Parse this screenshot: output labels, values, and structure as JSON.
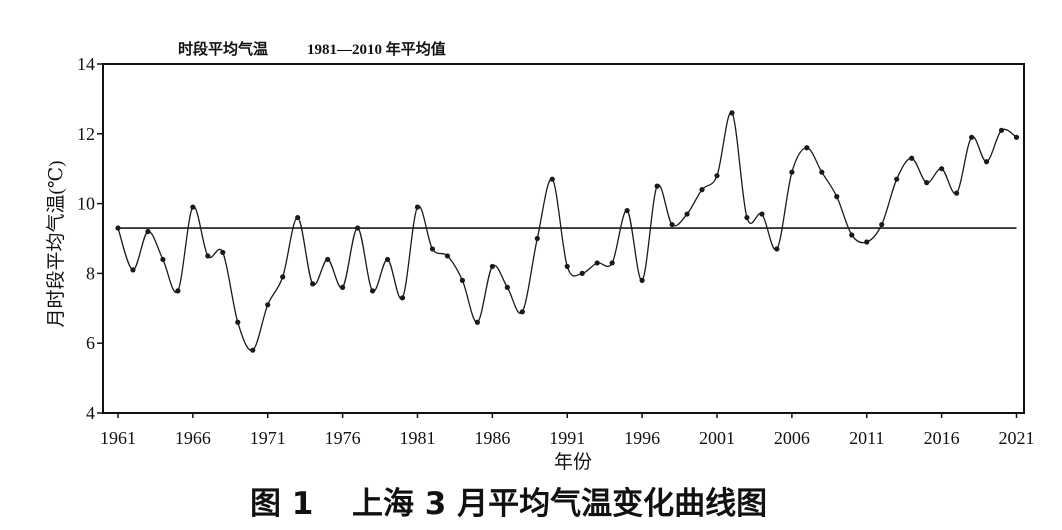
{
  "chart_data": {
    "type": "line",
    "figure_label": "图 1",
    "title": "上海 3 月平均气温变化曲线图",
    "xlabel": "年份",
    "ylabel": "月时段平均气温(℃)",
    "xlim": [
      1960,
      2021.5
    ],
    "ylim": [
      4,
      14
    ],
    "xticks": [
      1961,
      1966,
      1971,
      1976,
      1981,
      1986,
      1991,
      1996,
      2001,
      2006,
      2011,
      2016,
      2021
    ],
    "yticks": [
      4,
      6,
      8,
      10,
      12,
      14
    ],
    "grid": false,
    "legend_position": "top-left",
    "series": [
      {
        "name": "时段平均气温",
        "color": "#1a1a1a",
        "markers": true,
        "smooth": true,
        "x": [
          1961,
          1962,
          1963,
          1964,
          1965,
          1966,
          1967,
          1968,
          1969,
          1970,
          1971,
          1972,
          1973,
          1974,
          1975,
          1976,
          1977,
          1978,
          1979,
          1980,
          1981,
          1982,
          1983,
          1984,
          1985,
          1986,
          1987,
          1988,
          1989,
          1990,
          1991,
          1992,
          1993,
          1994,
          1995,
          1996,
          1997,
          1998,
          1999,
          2000,
          2001,
          2002,
          2003,
          2004,
          2005,
          2006,
          2007,
          2008,
          2009,
          2010,
          2011,
          2012,
          2013,
          2014,
          2015,
          2016,
          2017,
          2018,
          2019,
          2020,
          2021
        ],
        "values": [
          9.3,
          8.1,
          9.2,
          8.4,
          7.5,
          9.9,
          8.5,
          8.6,
          6.6,
          5.8,
          7.1,
          7.9,
          9.6,
          7.7,
          8.4,
          7.6,
          9.3,
          7.5,
          8.4,
          7.3,
          9.9,
          8.7,
          8.5,
          7.8,
          6.6,
          8.2,
          7.6,
          6.9,
          9.0,
          10.7,
          8.2,
          8.0,
          8.3,
          8.3,
          9.8,
          7.8,
          10.5,
          9.4,
          9.7,
          10.4,
          10.8,
          12.6,
          9.6,
          9.7,
          8.7,
          10.9,
          11.6,
          10.9,
          10.2,
          9.1,
          8.9,
          9.4,
          10.7,
          11.3,
          10.6,
          11.0,
          10.3,
          11.9,
          11.2,
          12.1,
          11.9
        ]
      },
      {
        "name": "1981—2010 年平均值",
        "color": "#1a1a1a",
        "markers": false,
        "x": [
          1961,
          2021
        ],
        "values": [
          9.3,
          9.3
        ]
      }
    ]
  }
}
